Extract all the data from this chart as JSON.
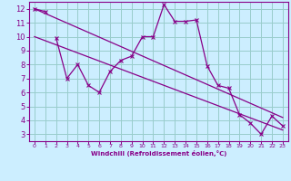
{
  "xlabel": "Windchill (Refroidissement éolien,°C)",
  "bg_color": "#cceeff",
  "line_color": "#880088",
  "grid_color": "#99cccc",
  "series1_x": [
    0,
    1
  ],
  "series1_y": [
    12.0,
    11.8
  ],
  "series2_x": [
    2,
    3,
    4,
    5,
    6,
    7,
    8,
    9,
    10,
    11,
    12,
    13,
    14,
    15,
    16,
    17,
    18,
    19,
    20,
    21,
    22,
    23
  ],
  "series2_y": [
    9.9,
    7.0,
    8.0,
    6.5,
    6.0,
    7.5,
    8.3,
    8.6,
    10.0,
    10.0,
    12.3,
    11.1,
    11.1,
    11.2,
    7.9,
    6.5,
    6.3,
    4.4,
    3.8,
    3.0,
    4.3,
    3.6
  ],
  "trend1_x": [
    0,
    23
  ],
  "trend1_y": [
    12.0,
    4.2
  ],
  "trend2_x": [
    0,
    23
  ],
  "trend2_y": [
    10.0,
    3.3
  ],
  "xlim": [
    -0.5,
    23.5
  ],
  "ylim": [
    2.5,
    12.5
  ],
  "yticks": [
    3,
    4,
    5,
    6,
    7,
    8,
    9,
    10,
    11,
    12
  ],
  "xticks": [
    0,
    1,
    2,
    3,
    4,
    5,
    6,
    7,
    8,
    9,
    10,
    11,
    12,
    13,
    14,
    15,
    16,
    17,
    18,
    19,
    20,
    21,
    22,
    23
  ]
}
